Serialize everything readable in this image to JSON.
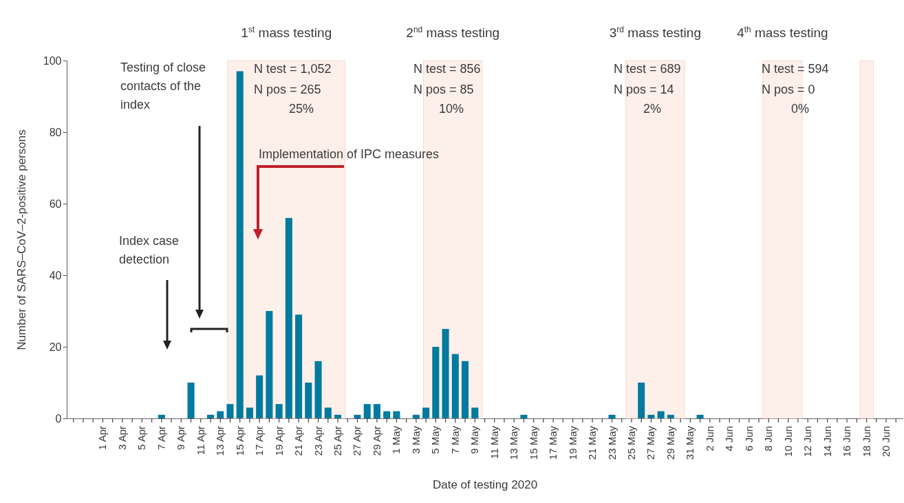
{
  "chart_data": {
    "type": "bar",
    "xlabel": "Date of testing 2020",
    "ylabel": "Number of SARS–CoV–2-positive persons",
    "x": [
      "2020-04-07",
      "2020-04-10",
      "2020-04-12",
      "2020-04-13",
      "2020-04-14",
      "2020-04-15",
      "2020-04-16",
      "2020-04-17",
      "2020-04-18",
      "2020-04-19",
      "2020-04-20",
      "2020-04-21",
      "2020-04-22",
      "2020-04-23",
      "2020-04-24",
      "2020-04-25",
      "2020-04-27",
      "2020-04-28",
      "2020-04-29",
      "2020-04-30",
      "2020-05-01",
      "2020-05-03",
      "2020-05-04",
      "2020-05-05",
      "2020-05-06",
      "2020-05-07",
      "2020-05-08",
      "2020-05-09",
      "2020-05-14",
      "2020-05-23",
      "2020-05-26",
      "2020-05-27",
      "2020-05-28",
      "2020-05-29",
      "2020-06-01"
    ],
    "series": [
      {
        "color": "#017a9f",
        "values": [
          1,
          10,
          1,
          2,
          4,
          97,
          3,
          12,
          30,
          4,
          56,
          29,
          10,
          16,
          3,
          1,
          1,
          4,
          4,
          2,
          2,
          1,
          3,
          20,
          25,
          18,
          16,
          3,
          1,
          1,
          10,
          1,
          2,
          1,
          1
        ]
      }
    ],
    "xlim": [
      "2020-03-28T16:00",
      "2020-06-21T08:00"
    ],
    "xticks": [
      {
        "value": "2020-03-29",
        "label": null
      },
      {
        "value": "2020-03-30",
        "label": null
      },
      {
        "value": "2020-03-31",
        "label": null
      },
      {
        "value": "2020-04-01",
        "label": "1 Apr"
      },
      {
        "value": "2020-04-02",
        "label": null
      },
      {
        "value": "2020-04-03",
        "label": "3 Apr"
      },
      {
        "value": "2020-04-04",
        "label": null
      },
      {
        "value": "2020-04-05",
        "label": "5 Apr"
      },
      {
        "value": "2020-04-06",
        "label": null
      },
      {
        "value": "2020-04-07",
        "label": "7 Apr"
      },
      {
        "value": "2020-04-08",
        "label": null
      },
      {
        "value": "2020-04-09",
        "label": "9 Apr"
      },
      {
        "value": "2020-04-10",
        "label": null
      },
      {
        "value": "2020-04-11",
        "label": "11 Apr"
      },
      {
        "value": "2020-04-12",
        "label": null
      },
      {
        "value": "2020-04-13",
        "label": "13 Apr"
      },
      {
        "value": "2020-04-14",
        "label": null
      },
      {
        "value": "2020-04-15",
        "label": "15 Apr"
      },
      {
        "value": "2020-04-16",
        "label": null
      },
      {
        "value": "2020-04-17",
        "label": "17 Apr"
      },
      {
        "value": "2020-04-18",
        "label": null
      },
      {
        "value": "2020-04-19",
        "label": "19 Apr"
      },
      {
        "value": "2020-04-20",
        "label": null
      },
      {
        "value": "2020-04-21",
        "label": "21 Apr"
      },
      {
        "value": "2020-04-22",
        "label": null
      },
      {
        "value": "2020-04-23",
        "label": "23 Apr"
      },
      {
        "value": "2020-04-24",
        "label": null
      },
      {
        "value": "2020-04-25",
        "label": "25 Apr"
      },
      {
        "value": "2020-04-26",
        "label": null
      },
      {
        "value": "2020-04-27",
        "label": "27 Apr"
      },
      {
        "value": "2020-04-28",
        "label": null
      },
      {
        "value": "2020-04-29",
        "label": "29 Apr"
      },
      {
        "value": "2020-04-30",
        "label": null
      },
      {
        "value": "2020-05-01",
        "label": "1 May"
      },
      {
        "value": "2020-05-02",
        "label": null
      },
      {
        "value": "2020-05-03",
        "label": "3 May"
      },
      {
        "value": "2020-05-04",
        "label": null
      },
      {
        "value": "2020-05-05",
        "label": "5 May"
      },
      {
        "value": "2020-05-06",
        "label": null
      },
      {
        "value": "2020-05-07",
        "label": "7 May"
      },
      {
        "value": "2020-05-08",
        "label": null
      },
      {
        "value": "2020-05-09",
        "label": "9 May"
      },
      {
        "value": "2020-05-10",
        "label": null
      },
      {
        "value": "2020-05-11",
        "label": "11 May"
      },
      {
        "value": "2020-05-12",
        "label": null
      },
      {
        "value": "2020-05-13",
        "label": "13 May"
      },
      {
        "value": "2020-05-14",
        "label": null
      },
      {
        "value": "2020-05-15",
        "label": "15 May"
      },
      {
        "value": "2020-05-16",
        "label": null
      },
      {
        "value": "2020-05-17",
        "label": "17 May"
      },
      {
        "value": "2020-05-18",
        "label": null
      },
      {
        "value": "2020-05-19",
        "label": "19 May"
      },
      {
        "value": "2020-05-20",
        "label": null
      },
      {
        "value": "2020-05-21",
        "label": "21 May"
      },
      {
        "value": "2020-05-22",
        "label": null
      },
      {
        "value": "2020-05-23",
        "label": "23 May"
      },
      {
        "value": "2020-05-24",
        "label": null
      },
      {
        "value": "2020-05-25",
        "label": "25 May"
      },
      {
        "value": "2020-05-26",
        "label": null
      },
      {
        "value": "2020-05-27",
        "label": "27 May"
      },
      {
        "value": "2020-05-28",
        "label": null
      },
      {
        "value": "2020-05-29",
        "label": "29 May"
      },
      {
        "value": "2020-05-30",
        "label": null
      },
      {
        "value": "2020-05-31",
        "label": "31 May"
      },
      {
        "value": "2020-06-01",
        "label": null
      },
      {
        "value": "2020-06-02",
        "label": "2 Jun"
      },
      {
        "value": "2020-06-03",
        "label": null
      },
      {
        "value": "2020-06-04",
        "label": "4 Jun"
      },
      {
        "value": "2020-06-05",
        "label": null
      },
      {
        "value": "2020-06-06",
        "label": "6 Jun"
      },
      {
        "value": "2020-06-07",
        "label": null
      },
      {
        "value": "2020-06-08",
        "label": "8 Jun"
      },
      {
        "value": "2020-06-09",
        "label": null
      },
      {
        "value": "2020-06-10",
        "label": "10 Jun"
      },
      {
        "value": "2020-06-11",
        "label": null
      },
      {
        "value": "2020-06-12",
        "label": "12 Jun"
      },
      {
        "value": "2020-06-13",
        "label": null
      },
      {
        "value": "2020-06-14",
        "label": "14 Jun"
      },
      {
        "value": "2020-06-15",
        "label": null
      },
      {
        "value": "2020-06-16",
        "label": "16 Jun"
      },
      {
        "value": "2020-06-17",
        "label": null
      },
      {
        "value": "2020-06-18",
        "label": "18 Jun"
      },
      {
        "value": "2020-06-19",
        "label": null
      },
      {
        "value": "2020-06-20",
        "label": "20 Jun"
      },
      {
        "value": "2020-06-21",
        "label": null
      }
    ],
    "ylim": [
      0,
      100
    ],
    "yticks": [
      0,
      20,
      40,
      60,
      80,
      100
    ],
    "grid": false,
    "bands": [
      {
        "axis": "x",
        "from": "2020-04-13T18:00",
        "to": "2020-04-25T18:00",
        "label": "1$^{st}$ mass testing",
        "color": "#fdf0ea"
      },
      {
        "axis": "x",
        "from": "2020-05-03T18:00",
        "to": "2020-05-09T18:00",
        "label": "2$^{nd}$ mass testing",
        "color": "#fdf0ea"
      },
      {
        "axis": "x",
        "from": "2020-05-24T10:00",
        "to": "2020-05-30T10:00",
        "label": "3$^{rd}$ mass testing",
        "color": "#fdf0ea"
      },
      {
        "axis": "x",
        "from": "2020-06-07T10:00",
        "to": "2020-06-11T10:00",
        "label": "4$^{th}$ mass testing",
        "color": "#fdf0ea"
      },
      {
        "axis": "x",
        "from": "2020-06-17T08:00",
        "to": "2020-06-18T17:00",
        "color": "#fdf0ea"
      }
    ],
    "annotations": [
      "Testing of close contacts of the index",
      "Index case detection",
      "Implementation of IPC measures",
      "N test = 1,052",
      "N pos = 265",
      "25%",
      "N test = 856",
      "N pos = 85",
      "10%",
      "N test = 689",
      "N pos = 14",
      "2%",
      "N test = 594",
      "N pos = 0",
      "0%"
    ]
  }
}
